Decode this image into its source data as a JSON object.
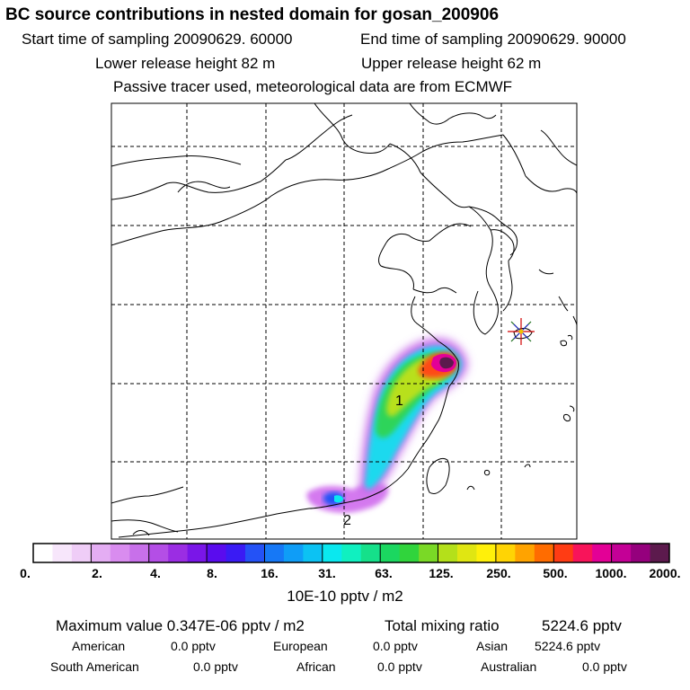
{
  "header": {
    "title": "BC  source contributions in nested domain for gosan_200906",
    "start_label": "Start time of sampling 20090629. 60000",
    "end_label": "End time of sampling 20090629. 90000",
    "lower_label": "Lower release height   82 m",
    "upper_label": "Upper release height   62 m",
    "note": "Passive tracer used, meteorological data are from ECMWF"
  },
  "map": {
    "sources": [
      {
        "label": "1"
      },
      {
        "label": "2"
      }
    ],
    "receptor": "receptor-star"
  },
  "colorbar": {
    "colors": [
      "#ffffff",
      "#f7e6fb",
      "#efcdf7",
      "#e4adf3",
      "#d98cef",
      "#c870ea",
      "#b44ee6",
      "#9b2de3",
      "#7a16e8",
      "#5a0cee",
      "#3a1bf4",
      "#2452f6",
      "#1678f6",
      "#0f9df7",
      "#0cc2f3",
      "#0ae8ef",
      "#10f0c0",
      "#15e08a",
      "#1bd760",
      "#30d43c",
      "#7ad926",
      "#b4e01a",
      "#e0e612",
      "#fff00a",
      "#ffd404",
      "#ffa300",
      "#ff6c00",
      "#ff3c14",
      "#f8145a",
      "#e30096",
      "#c40096",
      "#95007d",
      "#5c1a4d"
    ],
    "tick_labels": [
      "0.",
      "2.",
      "4.",
      "8.",
      "16.",
      "31.",
      "63.",
      "125.",
      "250.",
      "500.",
      "1000.",
      "2000."
    ],
    "units": "10E-10 pptv / m2"
  },
  "summary": {
    "max_label": "Maximum value  0.347E-06 pptv / m2",
    "total_label": "Total mixing ratio",
    "total_value": "5224.6 pptv",
    "american_label": "American",
    "american_value": "0.0 pptv",
    "european_label": "European",
    "european_value": "0.0 pptv",
    "asian_label": "Asian",
    "asian_value": "5224.6 pptv",
    "south_american_label": "South American",
    "south_american_value": "0.0 pptv",
    "african_label": "African",
    "african_value": "0.0 pptv",
    "australian_label": "Australian",
    "australian_value": "0.0 pptv"
  }
}
